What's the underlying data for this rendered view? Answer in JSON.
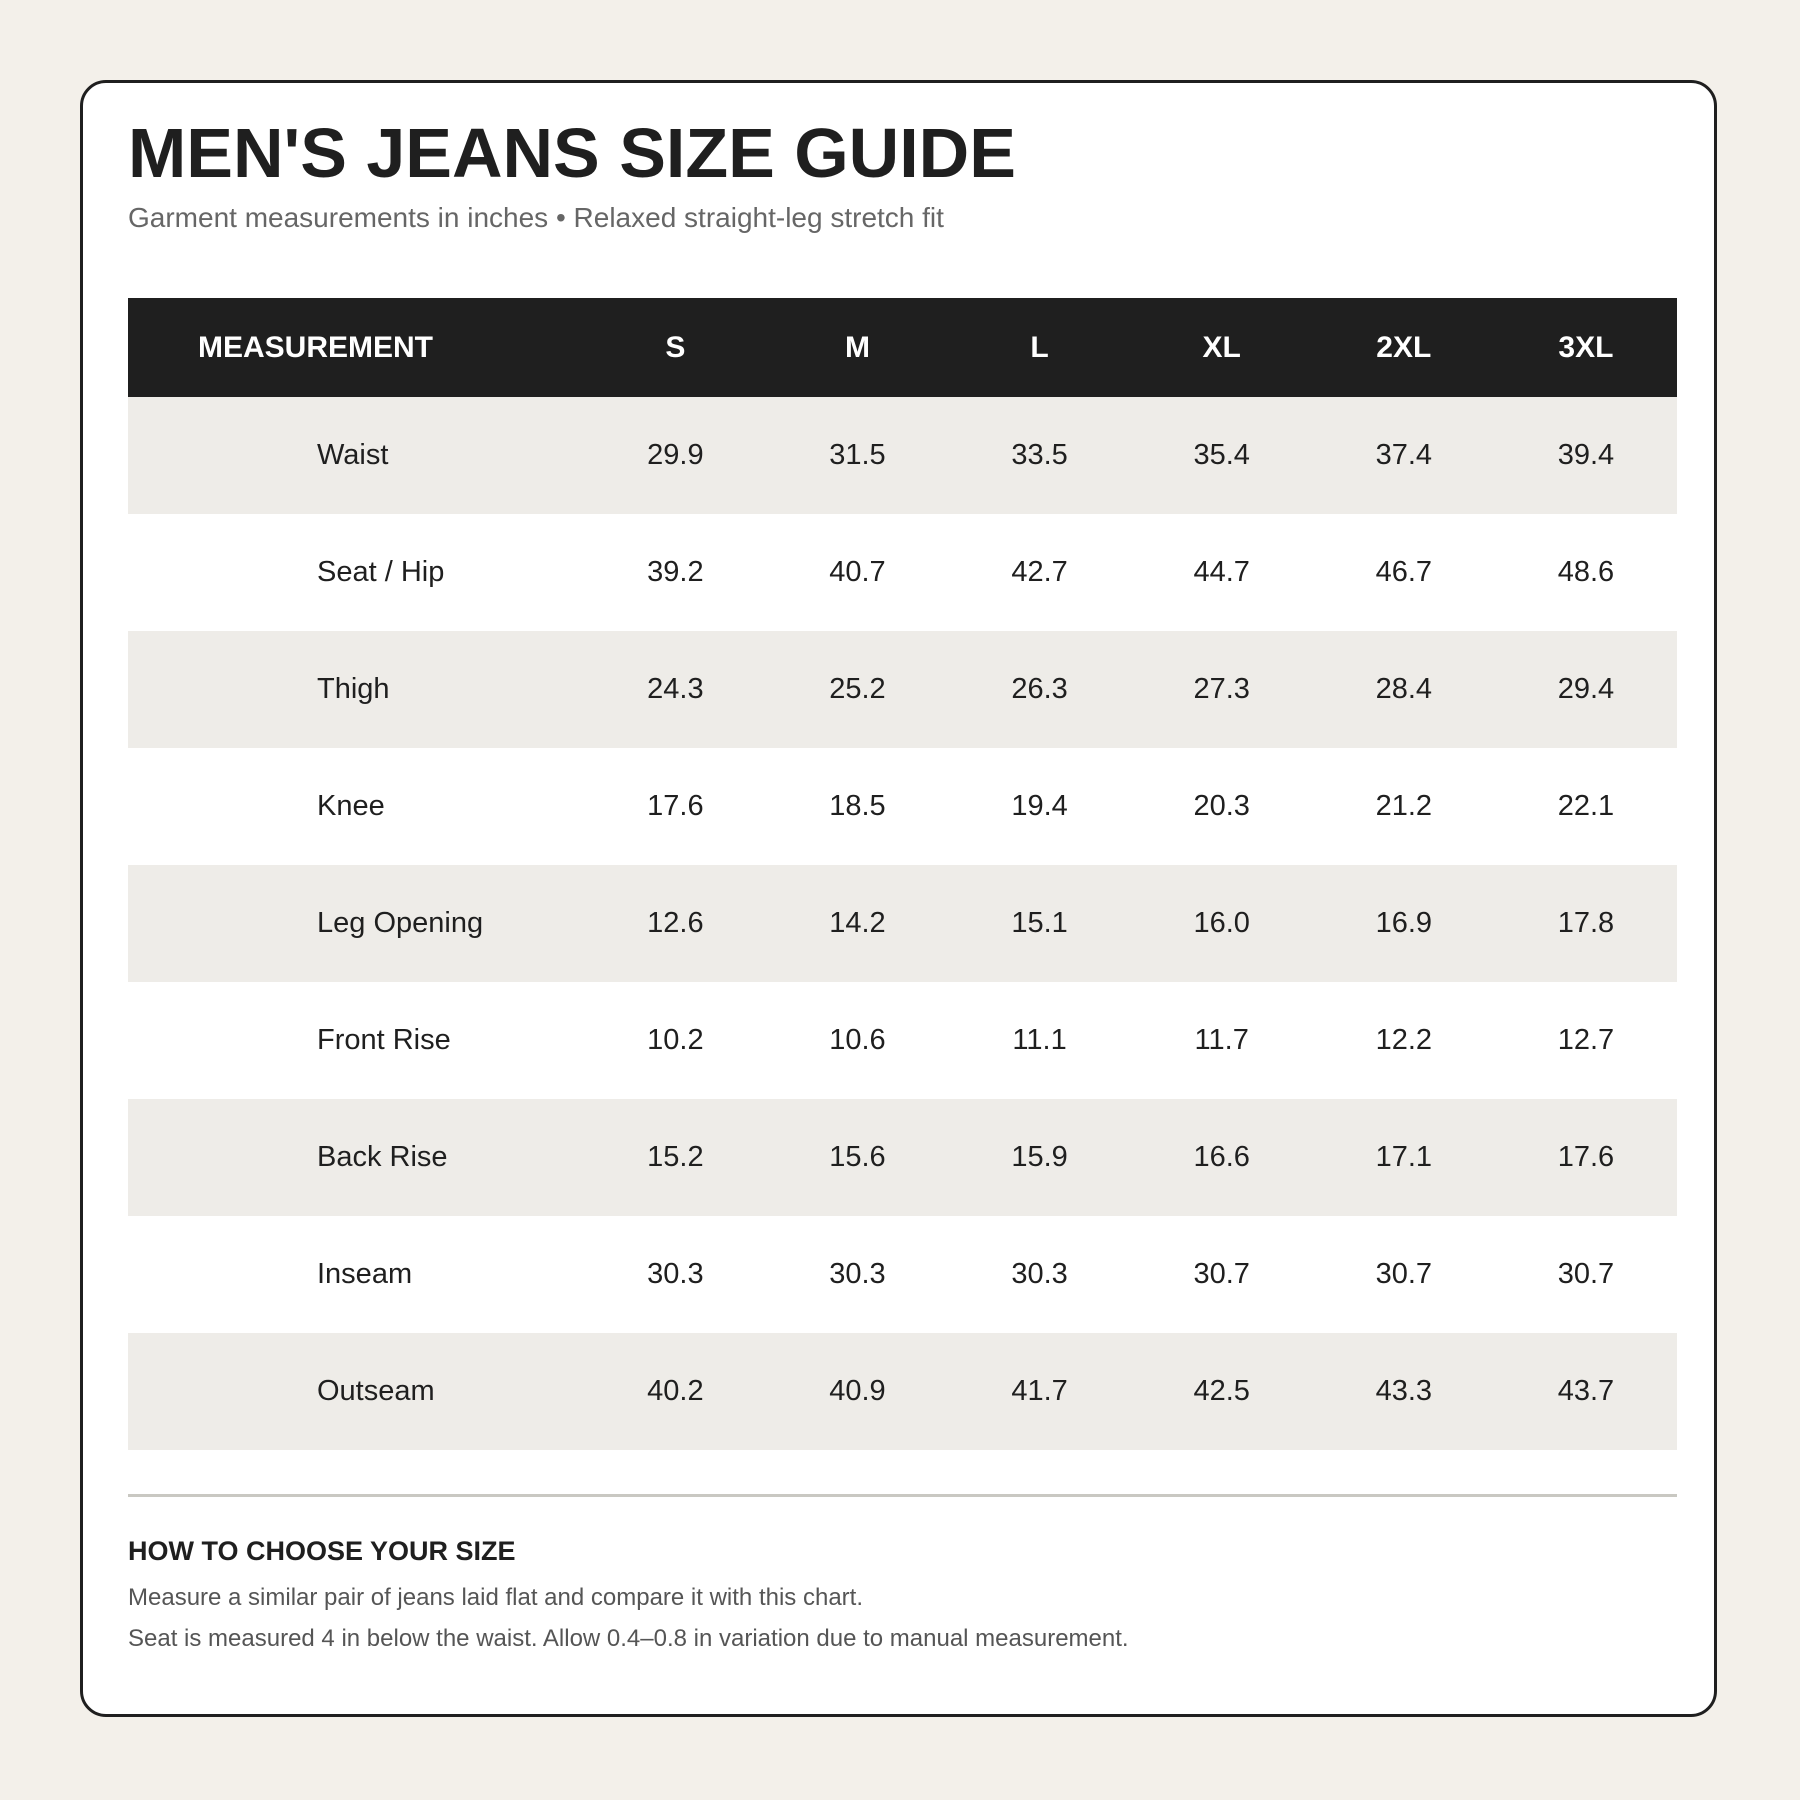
{
  "header": {
    "title": "MEN'S JEANS SIZE GUIDE",
    "subtitle": "Garment measurements in inches • Relaxed straight-leg stretch fit"
  },
  "table": {
    "label_header": "MEASUREMENT",
    "sizes": [
      "S",
      "M",
      "L",
      "XL",
      "2XL",
      "3XL"
    ],
    "rows": [
      {
        "label": "Waist",
        "values": [
          "29.9",
          "31.5",
          "33.5",
          "35.4",
          "37.4",
          "39.4"
        ]
      },
      {
        "label": "Seat / Hip",
        "values": [
          "39.2",
          "40.7",
          "42.7",
          "44.7",
          "46.7",
          "48.6"
        ]
      },
      {
        "label": "Thigh",
        "values": [
          "24.3",
          "25.2",
          "26.3",
          "27.3",
          "28.4",
          "29.4"
        ]
      },
      {
        "label": "Knee",
        "values": [
          "17.6",
          "18.5",
          "19.4",
          "20.3",
          "21.2",
          "22.1"
        ]
      },
      {
        "label": "Leg Opening",
        "values": [
          "12.6",
          "14.2",
          "15.1",
          "16.0",
          "16.9",
          "17.8"
        ]
      },
      {
        "label": "Front Rise",
        "values": [
          "10.2",
          "10.6",
          "11.1",
          "11.7",
          "12.2",
          "12.7"
        ]
      },
      {
        "label": "Back Rise",
        "values": [
          "15.2",
          "15.6",
          "15.9",
          "16.6",
          "17.1",
          "17.6"
        ]
      },
      {
        "label": "Inseam",
        "values": [
          "30.3",
          "30.3",
          "30.3",
          "30.7",
          "30.7",
          "30.7"
        ]
      },
      {
        "label": "Outseam",
        "values": [
          "40.2",
          "40.9",
          "41.7",
          "42.5",
          "43.3",
          "43.7"
        ]
      }
    ]
  },
  "guide": {
    "heading": "HOW TO CHOOSE YOUR SIZE",
    "lines": [
      "Measure a similar pair of jeans laid flat and compare it with this chart.",
      "Seat is measured 4 in below the waist. Allow 0.4–0.8 in variation due to manual measurement."
    ]
  },
  "colors": {
    "page_background": "#f3f0ea",
    "card_background": "#ffffff",
    "header_background": "#1f1f1f",
    "stripe_row": "#eeece8",
    "text": "#1f1f1f",
    "muted_text": "#666666"
  }
}
